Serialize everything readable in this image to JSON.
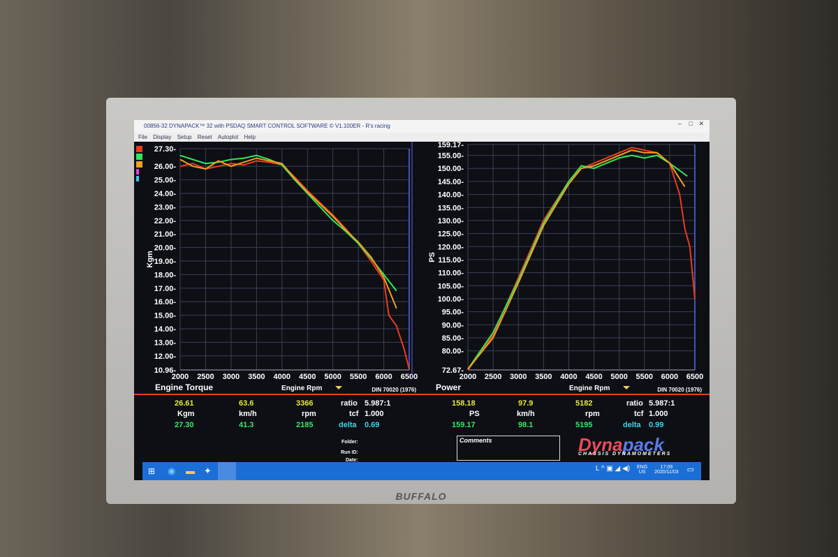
{
  "window": {
    "title": "00856-32 DYNAPACK™ 32 with PSDAQ SMART CONTROL SOFTWARE © V1.100ER - R's racing",
    "menu": [
      "File",
      "Display",
      "Setup",
      "Reset",
      "Autoplot",
      "Help"
    ]
  },
  "colors": {
    "red": "#f03a1e",
    "green": "#2ee85a",
    "orange": "#f0a020"
  },
  "chart_data": [
    {
      "type": "line",
      "title": "Engine Torque",
      "xlabel": "Engine Rpm",
      "ylabel": "Kgm",
      "standard": "DIN 70020 (1976)",
      "xlim": [
        2000,
        6500
      ],
      "ylim": [
        10.96,
        27.3
      ],
      "x_ticks": [
        "2000",
        "2500",
        "3000",
        "3500",
        "4000",
        "4500",
        "5000",
        "5500",
        "6000",
        "6500"
      ],
      "y_ticks": [
        "27.30",
        "26.00",
        "25.00",
        "24.00",
        "23.00",
        "22.00",
        "21.00",
        "20.00",
        "19.00",
        "18.00",
        "17.00",
        "16.00",
        "15.00",
        "14.00",
        "13.00",
        "12.00",
        "10.96"
      ],
      "grid": true,
      "series": [
        {
          "color": "red",
          "x": [
            2000,
            2250,
            2500,
            2750,
            3000,
            3250,
            3500,
            3750,
            4000,
            4250,
            4500,
            4750,
            5000,
            5250,
            5500,
            5750,
            6000,
            6100,
            6250,
            6400,
            6500
          ],
          "y": [
            26.0,
            26.2,
            25.8,
            26.0,
            26.2,
            26.1,
            26.4,
            26.3,
            26.1,
            25.2,
            24.2,
            23.3,
            22.4,
            21.4,
            20.3,
            19.0,
            17.6,
            15.0,
            14.2,
            12.5,
            11.0
          ]
        },
        {
          "color": "green",
          "x": [
            2000,
            2250,
            2500,
            2750,
            3000,
            3250,
            3500,
            3750,
            4000,
            4250,
            4500,
            4750,
            5000,
            5250,
            5500,
            5750,
            6000,
            6250
          ],
          "y": [
            26.8,
            26.5,
            26.2,
            26.3,
            26.5,
            26.6,
            26.8,
            26.5,
            26.1,
            25.0,
            24.0,
            23.0,
            22.0,
            21.2,
            20.3,
            19.2,
            18.0,
            16.8
          ]
        },
        {
          "color": "orange",
          "x": [
            2000,
            2250,
            2500,
            2750,
            3000,
            3250,
            3500,
            3750,
            4000,
            4250,
            4500,
            4750,
            5000,
            5250,
            5500,
            5750,
            6000,
            6250
          ],
          "y": [
            26.5,
            26.0,
            25.8,
            26.4,
            26.0,
            26.3,
            26.6,
            26.4,
            26.2,
            25.1,
            24.1,
            23.2,
            22.3,
            21.3,
            20.4,
            19.3,
            17.8,
            15.5
          ]
        }
      ]
    },
    {
      "type": "line",
      "title": "Power",
      "xlabel": "Engine Rpm",
      "ylabel": "PS",
      "standard": "DIN 70020 (1976)",
      "xlim": [
        2000,
        6500
      ],
      "ylim": [
        72.67,
        159.17
      ],
      "x_ticks": [
        "2000",
        "2500",
        "3000",
        "3500",
        "4000",
        "4500",
        "5000",
        "5500",
        "6000",
        "6500"
      ],
      "y_ticks": [
        "159.17",
        "155.00",
        "150.00",
        "145.00",
        "140.00",
        "135.00",
        "130.00",
        "125.00",
        "120.00",
        "115.00",
        "110.00",
        "105.00",
        "100.00",
        "95.00",
        "90.00",
        "85.00",
        "80.00",
        "72.67"
      ],
      "grid": true,
      "series": [
        {
          "color": "red",
          "x": [
            2000,
            2500,
            3000,
            3500,
            4000,
            4250,
            4500,
            5000,
            5250,
            5500,
            5750,
            6000,
            6200,
            6300,
            6400,
            6500
          ],
          "y": [
            72.67,
            86,
            108,
            130,
            145,
            150,
            152,
            156,
            158,
            157,
            156,
            152,
            140,
            127,
            120,
            100
          ]
        },
        {
          "color": "green",
          "x": [
            2000,
            2500,
            3000,
            3500,
            4000,
            4250,
            4500,
            5000,
            5250,
            5500,
            5750,
            6000,
            6350
          ],
          "y": [
            73,
            87,
            107,
            129,
            145,
            151,
            150,
            154,
            155,
            154,
            155,
            152,
            147
          ]
        },
        {
          "color": "orange",
          "x": [
            2000,
            2500,
            3000,
            3500,
            4000,
            4250,
            4500,
            5000,
            5250,
            5500,
            5750,
            6000,
            6300
          ],
          "y": [
            73,
            85,
            106,
            128,
            144,
            150,
            151,
            155,
            157,
            156,
            156,
            152,
            143
          ]
        }
      ]
    }
  ],
  "torque_readout": {
    "v1": "26.61",
    "speed1": "63.6",
    "rpm1": "3366",
    "unit": "Kgm",
    "speed_unit": "km/h",
    "rpm_unit": "rpm",
    "v2": "27.30",
    "speed2": "41.3",
    "rpm2": "2185",
    "ratio_label": "ratio",
    "ratio": "5.987:1",
    "tcf_label": "tcf",
    "tcf": "1.000",
    "delta_label": "delta",
    "delta": "0.69"
  },
  "power_readout": {
    "v1": "158.18",
    "speed1": "97.9",
    "rpm1": "5182",
    "unit": "PS",
    "speed_unit": "km/h",
    "rpm_unit": "rpm",
    "v2": "159.17",
    "speed2": "98.1",
    "rpm2": "5195",
    "ratio_label": "ratio",
    "ratio": "5.987:1",
    "tcf_label": "tcf",
    "tcf": "1.000",
    "delta_label": "delta",
    "delta": "0.99"
  },
  "info": {
    "folder": "Folder:",
    "run_id": "Run ID:",
    "date": "Date:",
    "comments": "Comments"
  },
  "logo": {
    "a": "Dyna",
    "b": "pack",
    "sub": "CHASSIS DYNAMOMETERS"
  },
  "taskbar": {
    "lang1": "ENG",
    "lang2": "US",
    "time": "17:09",
    "date": "2020/11/03"
  },
  "monitor_brand": "BUFFALO"
}
